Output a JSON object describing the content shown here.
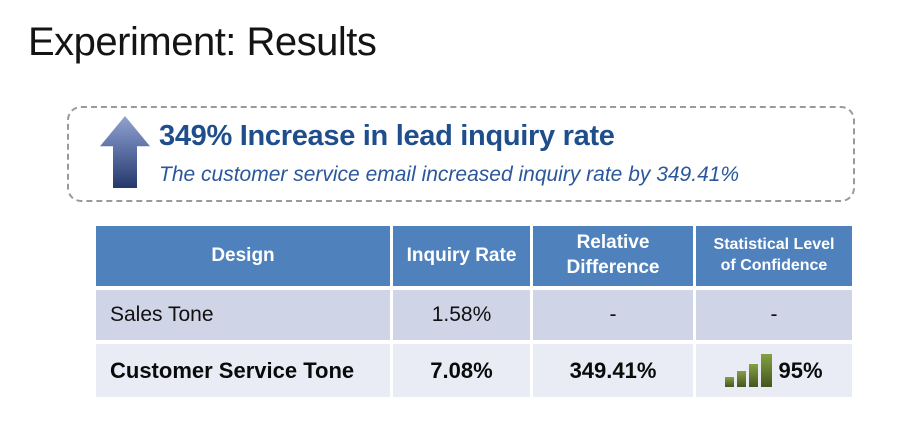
{
  "slide": {
    "title": "Experiment: Results"
  },
  "callout": {
    "heading": "349% Increase in lead inquiry rate",
    "subheading": "The customer service email increased inquiry rate by 349.41%",
    "icon": "up-arrow-icon"
  },
  "table": {
    "columns": [
      "Design",
      "Inquiry Rate",
      "Relative Difference",
      "Statistical Level of Confidence"
    ],
    "rows": [
      {
        "design": "Sales Tone",
        "inquiry_rate": "1.58%",
        "relative_difference": "-",
        "confidence": "-"
      },
      {
        "design": "Customer Service Tone",
        "inquiry_rate": "7.08%",
        "relative_difference": "349.41%",
        "confidence": "95%",
        "confidence_icon": "signal-bars-icon"
      }
    ]
  },
  "colors": {
    "table_header_bg": "#4f81bd",
    "table_header_text": "#ffffff",
    "row_odd_bg": "#cfd5e6",
    "row_even_bg": "#e9ecf5",
    "callout_heading": "#1f4e8c",
    "callout_subheading": "#2b579a",
    "callout_border": "#9a9a9a",
    "arrow_gradient_top": "#93a3cd",
    "arrow_gradient_bottom": "#24386b",
    "bars_green_top": "#83a143",
    "bars_green_bottom": "#45551f"
  }
}
